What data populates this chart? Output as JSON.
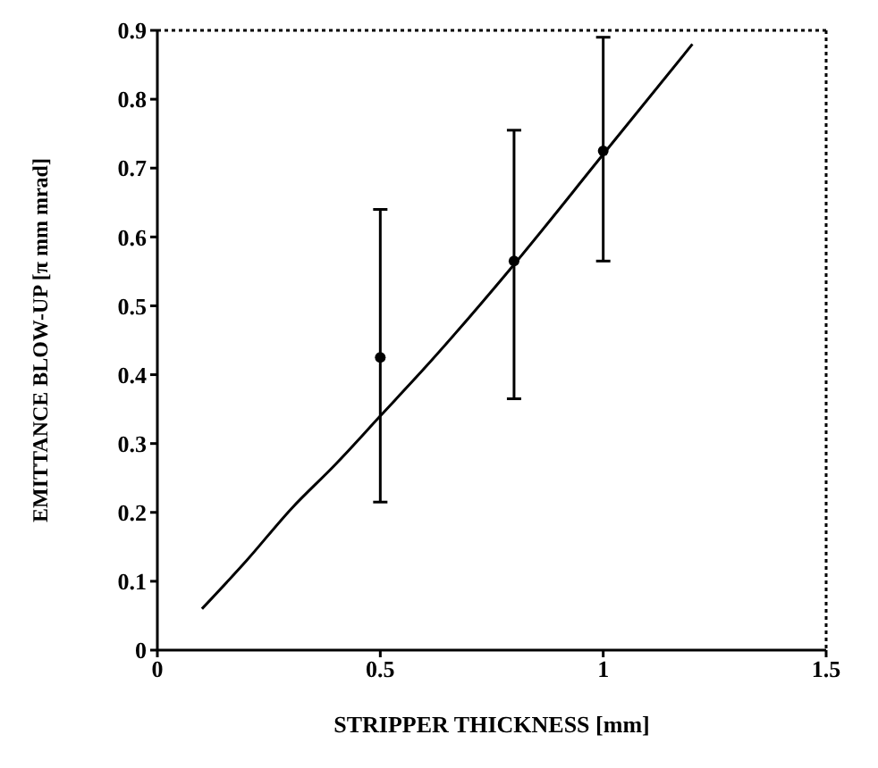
{
  "chart_data": {
    "type": "scatter",
    "xlabel": "STRIPPER THICKNESS [mm]",
    "ylabel": "EMITTANCE BLOW-UP [π mm mrad]",
    "xlim": [
      0,
      1.5
    ],
    "xticks": [
      0,
      0.5,
      1,
      1.5
    ],
    "ylim": [
      0,
      0.9
    ],
    "yticks": [
      0,
      0.1,
      0.2,
      0.3,
      0.4,
      0.5,
      0.6,
      0.7,
      0.8,
      0.9
    ],
    "grid": false,
    "legend": false,
    "series": [
      {
        "color": "#000000",
        "marker": "circle",
        "x": [
          0.5,
          0.8,
          1.0
        ],
        "values": [
          0.425,
          0.565,
          0.725
        ],
        "errors": [
          [
            0.215,
            0.64
          ],
          [
            0.365,
            0.755
          ],
          [
            0.565,
            0.89
          ]
        ]
      },
      {
        "type": "line",
        "color": "#000000",
        "marker": "none",
        "x": [
          0.1,
          0.2,
          0.3,
          0.4,
          0.5,
          0.6,
          0.8,
          1.0,
          1.2
        ],
        "values": [
          0.06,
          0.13,
          0.205,
          0.27,
          0.34,
          0.41,
          0.56,
          0.72,
          0.88
        ]
      }
    ]
  }
}
